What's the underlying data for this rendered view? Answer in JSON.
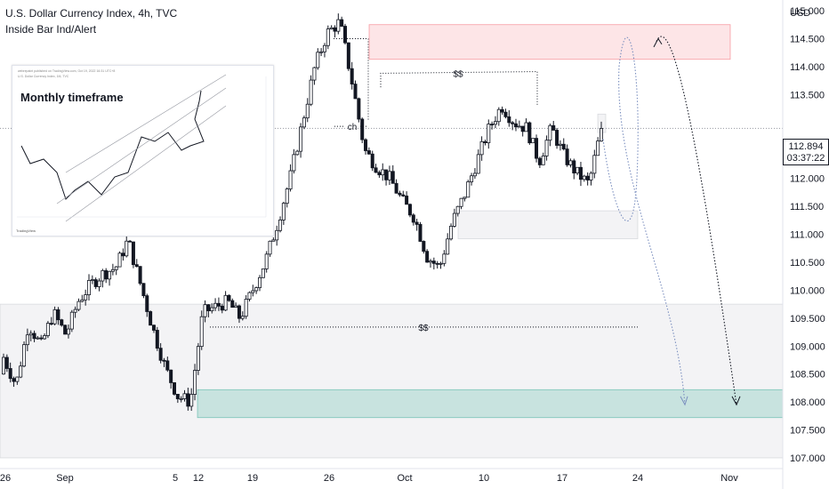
{
  "header": {
    "title": "U.S. Dollar Currency Index, 4h, TVC",
    "indicator": "Inside Bar Ind/Alert"
  },
  "currency_label": "USD",
  "inset": {
    "label": "Monthly timeframe",
    "header_text": "webrepaint published on TradingView.com, Oct 19, 2022 16:31 UTC+8",
    "header_text2": "U.S. Dollar Currency Index, 1M, TVC",
    "logo": "TradingView"
  },
  "price_box": {
    "price": "112.894",
    "countdown": "03:37:22"
  },
  "annotations": {
    "ch": "ch",
    "ss_top": "$$",
    "ss_bottom": "$$"
  },
  "colors": {
    "candle": "#131722",
    "supply_zone": "#f23645",
    "demand_zone": "#089981",
    "neutral_zone": "#b2b5be",
    "projection_line": "#7b8fbf"
  },
  "chart_data": {
    "type": "candlestick",
    "title": "U.S. Dollar Currency Index, 4h, TVC",
    "ylabel": "USD",
    "ylim": [
      106.86,
      115.28
    ],
    "y_ticks": [
      "115.000",
      "114.500",
      "114.000",
      "113.500",
      "113.000",
      "112.500",
      "112.000",
      "111.500",
      "111.000",
      "110.500",
      "110.000",
      "109.500",
      "109.000",
      "108.500",
      "108.000",
      "107.500",
      "107.000"
    ],
    "x_ticks": [
      "26",
      "Sep",
      "5",
      "12",
      "19",
      "26",
      "Oct",
      "10",
      "17",
      "24",
      "Nov"
    ],
    "last_price": 112.894,
    "price_path": [
      [
        108.5,
        108.8
      ],
      [
        109.0,
        108.3
      ],
      [
        108.9,
        109.4
      ],
      [
        109.1,
        109.0
      ],
      [
        109.4,
        109.6
      ],
      [
        109.5,
        109.2
      ],
      [
        109.6,
        109.8
      ],
      [
        109.7,
        110.1
      ],
      [
        110.2,
        110.3
      ],
      [
        110.6,
        110.4
      ],
      [
        110.5,
        110.9
      ],
      [
        110.7,
        110.1
      ],
      [
        109.8,
        109.3
      ],
      [
        108.7,
        108.6
      ],
      [
        108.4,
        108.1
      ],
      [
        107.8,
        108.0
      ],
      [
        108.3,
        109.6
      ],
      [
        109.8,
        109.7
      ],
      [
        109.6,
        109.8
      ],
      [
        109.7,
        109.5
      ],
      [
        109.6,
        110.0
      ],
      [
        110.3,
        110.5
      ],
      [
        110.6,
        111.2
      ],
      [
        111.5,
        112.0
      ],
      [
        112.4,
        113.0
      ],
      [
        113.4,
        114.0
      ],
      [
        114.4,
        114.6
      ],
      [
        114.2,
        114.8
      ],
      [
        114.5,
        113.7
      ],
      [
        113.1,
        112.5
      ],
      [
        112.1,
        112.2
      ],
      [
        111.9,
        112.0
      ],
      [
        112.3,
        111.6
      ],
      [
        111.7,
        111.3
      ],
      [
        111.1,
        110.6
      ],
      [
        110.2,
        110.4
      ],
      [
        110.9,
        111.2
      ],
      [
        111.4,
        111.7
      ],
      [
        112.0,
        112.3
      ],
      [
        112.7,
        112.9
      ],
      [
        113.0,
        113.3
      ],
      [
        113.2,
        113.0
      ],
      [
        113.3,
        112.9
      ],
      [
        112.7,
        112.3
      ],
      [
        112.5,
        112.9
      ],
      [
        112.7,
        112.4
      ],
      [
        112.2,
        112.1
      ],
      [
        112.0,
        111.9
      ],
      [
        112.4,
        112.894
      ]
    ],
    "zones": [
      {
        "kind": "supply",
        "from": 114.13,
        "to": 114.75,
        "x_from": "26",
        "x_to": "Nov"
      },
      {
        "kind": "neutral",
        "from": 112.82,
        "to": 113.15,
        "x_from": "17",
        "x_to": "17"
      },
      {
        "kind": "neutral",
        "from": 110.92,
        "to": 111.42,
        "x_from": "Oct",
        "x_to": "24"
      },
      {
        "kind": "neutral",
        "from": 107.0,
        "to": 109.75,
        "x_from": "26",
        "x_to": "Nov"
      },
      {
        "kind": "demand",
        "from": 107.72,
        "to": 108.22,
        "x_from": "12",
        "x_to": "Nov"
      }
    ],
    "levels": [
      {
        "label": "$$",
        "value": 113.88
      },
      {
        "label": "$$",
        "value": 109.34
      },
      {
        "label": "ch",
        "value": 112.93
      }
    ],
    "projections": [
      {
        "name": "path-1",
        "points": [
          [
            112.7,
            "17"
          ],
          [
            111.3,
            "24"
          ],
          [
            114.6,
            "24"
          ],
          [
            107.95,
            "24"
          ]
        ]
      },
      {
        "name": "path-2",
        "points": [
          [
            114.45,
            "24"
          ],
          [
            107.95,
            "Nov"
          ]
        ]
      }
    ]
  }
}
